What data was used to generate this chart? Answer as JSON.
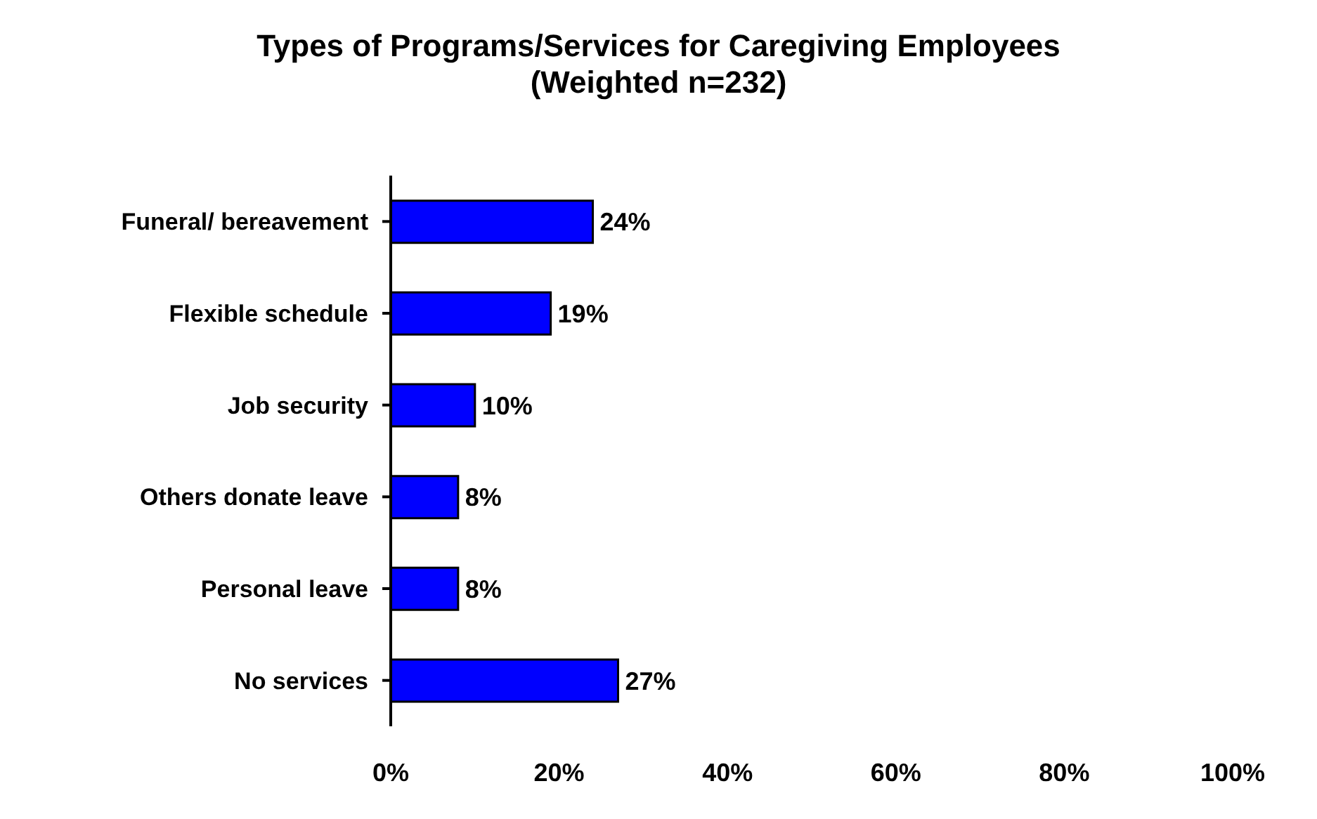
{
  "chart_data": {
    "type": "bar",
    "orientation": "horizontal",
    "title": "Types of Programs/Services for Caregiving Employees",
    "subtitle": "(Weighted n=232)",
    "categories": [
      "Funeral/ bereavement",
      "Flexible schedule",
      "Job security",
      "Others donate leave",
      "Personal leave",
      "No services"
    ],
    "values": [
      24,
      19,
      10,
      8,
      8,
      27
    ],
    "value_labels": [
      "24%",
      "19%",
      "10%",
      "8%",
      "8%",
      "27%"
    ],
    "color": "#0000ff",
    "xlim": [
      0,
      100
    ],
    "xticks": [
      {
        "value": 0,
        "label": "0%"
      },
      {
        "value": 20,
        "label": "20%"
      },
      {
        "value": 40,
        "label": "40%"
      },
      {
        "value": 60,
        "label": "60%"
      },
      {
        "value": 80,
        "label": "80%"
      },
      {
        "value": 100,
        "label": "100%"
      }
    ],
    "grid": false,
    "legend": false
  }
}
